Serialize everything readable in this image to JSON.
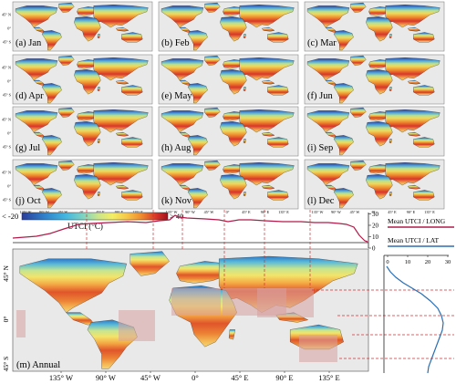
{
  "panels": [
    {
      "label": "(a) Jan"
    },
    {
      "label": "(b) Feb"
    },
    {
      "label": "(c) Mar"
    },
    {
      "label": "(d) Apr"
    },
    {
      "label": "(e) May"
    },
    {
      "label": "(f) Jun"
    },
    {
      "label": "(g) Jul"
    },
    {
      "label": "(h) Aug"
    },
    {
      "label": "(i) Sep"
    },
    {
      "label": "(j) Oct"
    },
    {
      "label": "(k) Nov"
    },
    {
      "label": "(l) Dec"
    }
  ],
  "small_lat_ticks": [
    "45° N",
    "0°",
    "45° S"
  ],
  "small_lon_ticks": [
    "135° W",
    "90° W",
    "45° W",
    "0°",
    "45° E",
    "90° E",
    "135° E"
  ],
  "colorbar": {
    "min_label": "< -20",
    "max_label": "> 40",
    "title": "UTCI (°C)",
    "colors": [
      "#2a3d9a",
      "#2f7fc9",
      "#43b7e0",
      "#7fd3c1",
      "#c9e58c",
      "#f3ee64",
      "#f7c748",
      "#ef8a2e",
      "#d9352a",
      "#a3121c"
    ]
  },
  "annual": {
    "label": "(m) Annual",
    "lat_ticks": [
      "45° N",
      "0°",
      "45° S"
    ],
    "lon_ticks": [
      "135° W",
      "90° W",
      "45° W",
      "0°",
      "45° E",
      "90° E",
      "135° E"
    ]
  },
  "long_profile": {
    "legend": "Mean UTCI / LONG",
    "yticks": [
      "30",
      "20",
      "10",
      "0"
    ],
    "color": "#b01b4a"
  },
  "lat_profile": {
    "legend": "Mean UTCI / LAT",
    "xticks": [
      "0",
      "10",
      "20",
      "30"
    ],
    "color": "#2a6fb3"
  },
  "colors": {
    "ocean": "#e9e9e9",
    "border": "#222222",
    "highlight": "#d9a0a0",
    "dashed": "#d03030"
  }
}
